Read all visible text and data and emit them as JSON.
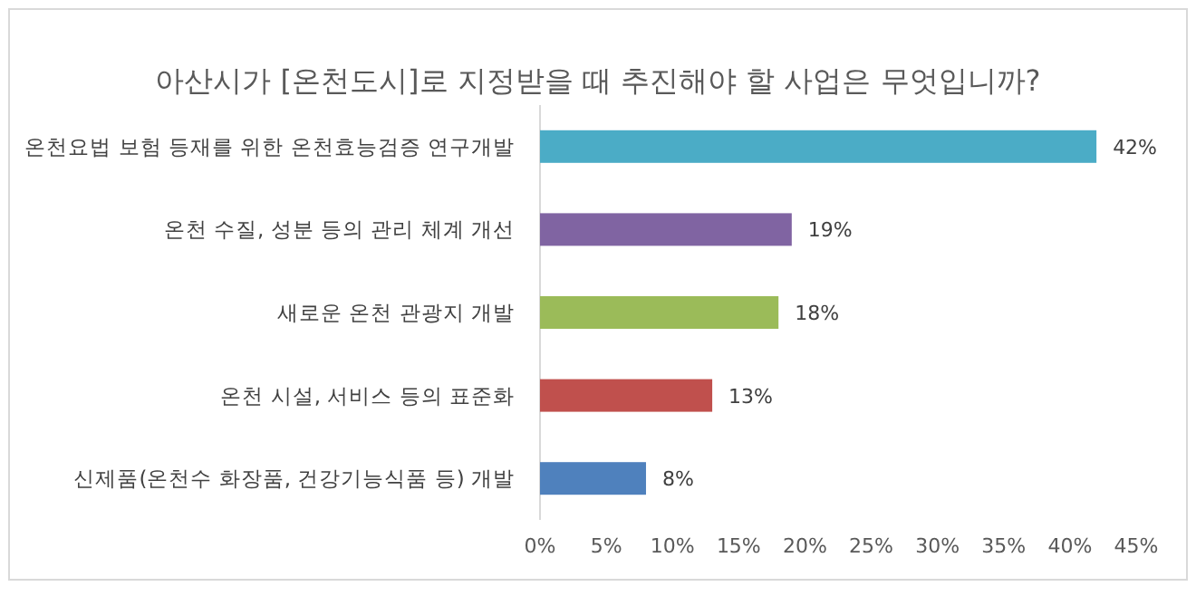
{
  "chart_data": {
    "type": "bar",
    "orientation": "horizontal",
    "title": "아산시가 [온천도시]로 지정받을 때 추진해야 할 사업은 무엇입니까?",
    "categories": [
      "온천요법 보험 등재를 위한 온천효능검증 연구개발",
      "온천 수질, 성분 등의 관리 체계 개선",
      "새로운 온천 관광지 개발",
      "온천 시설, 서비스 등의 표준화",
      "신제품(온천수 화장품, 건강기능식품 등) 개발"
    ],
    "values": [
      42,
      19,
      18,
      13,
      8
    ],
    "colors": [
      "#4bacc6",
      "#8064a2",
      "#9bbb59",
      "#c0504d",
      "#4f81bd"
    ],
    "value_labels": [
      "42%",
      "19%",
      "18%",
      "13%",
      "8%"
    ],
    "xlim": [
      0,
      45
    ],
    "xticks": [
      {
        "value": 0,
        "label": "0%"
      },
      {
        "value": 5,
        "label": "5%"
      },
      {
        "value": 10,
        "label": "10%"
      },
      {
        "value": 15,
        "label": "15%"
      },
      {
        "value": 20,
        "label": "20%"
      },
      {
        "value": 25,
        "label": "25%"
      },
      {
        "value": 30,
        "label": "30%"
      },
      {
        "value": 35,
        "label": "35%"
      },
      {
        "value": 40,
        "label": "40%"
      },
      {
        "value": 45,
        "label": "45%"
      }
    ],
    "grid": false
  }
}
